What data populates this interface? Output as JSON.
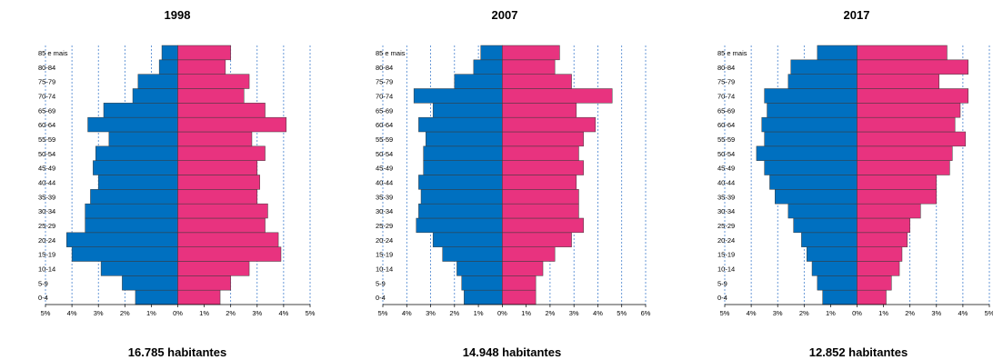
{
  "chart_data": [
    {
      "type": "bar",
      "title": "1998",
      "total_label": "16.785 habitantes",
      "categories": [
        "0-4",
        "5-9",
        "10-14",
        "15-19",
        "20-24",
        "25-29",
        "30-34",
        "35-39",
        "40-44",
        "45-49",
        "50-54",
        "55-59",
        "60-64",
        "65-69",
        "70-74",
        "75-79",
        "80-84",
        "85 e mais"
      ],
      "series": [
        {
          "color": "#0070c0",
          "values": [
            1.6,
            2.1,
            2.9,
            4.0,
            4.2,
            3.5,
            3.5,
            3.3,
            3.0,
            3.2,
            3.1,
            2.6,
            3.4,
            2.8,
            1.7,
            1.5,
            0.7,
            0.6
          ]
        },
        {
          "color": "#e8337f",
          "values": [
            1.6,
            2.0,
            2.7,
            3.9,
            3.8,
            3.3,
            3.4,
            3.0,
            3.1,
            3.0,
            3.3,
            2.8,
            4.1,
            3.3,
            2.5,
            2.7,
            1.8,
            2.0
          ]
        }
      ],
      "x_ticks": [
        "5%",
        "4%",
        "3%",
        "2%",
        "1%",
        "0%",
        "1%",
        "2%",
        "3%",
        "4%",
        "5%"
      ],
      "xlim": [
        -5,
        5
      ],
      "grid": true
    },
    {
      "type": "bar",
      "title": "2007",
      "total_label": "14.948 habitantes",
      "categories": [
        "0-4",
        "5-9",
        "10-14",
        "15-19",
        "20-24",
        "25-29",
        "30-34",
        "35-39",
        "40-44",
        "45-49",
        "50-54",
        "55-59",
        "60-64",
        "65-69",
        "70-74",
        "75-79",
        "80-84",
        "85 e mais"
      ],
      "series": [
        {
          "color": "#0070c0",
          "values": [
            1.6,
            1.7,
            1.9,
            2.5,
            2.9,
            3.6,
            3.5,
            3.4,
            3.5,
            3.3,
            3.3,
            3.2,
            3.5,
            2.9,
            3.7,
            2.0,
            1.2,
            0.9
          ]
        },
        {
          "color": "#e8337f",
          "values": [
            1.4,
            1.4,
            1.7,
            2.2,
            2.9,
            3.4,
            3.2,
            3.2,
            3.1,
            3.4,
            3.2,
            3.4,
            3.9,
            3.1,
            4.6,
            2.9,
            2.2,
            2.4
          ]
        }
      ],
      "x_ticks": [
        "5%",
        "4%",
        "3%",
        "2%",
        "1%",
        "0%",
        "1%",
        "2%",
        "3%",
        "4%",
        "5%",
        "6%"
      ],
      "xlim": [
        -5,
        6
      ],
      "grid": true
    },
    {
      "type": "bar",
      "title": "2017",
      "total_label": "12.852 habitantes",
      "categories": [
        "0-4",
        "5-9",
        "10-14",
        "15-19",
        "20-24",
        "25-29",
        "30-34",
        "35-39",
        "40-44",
        "45-49",
        "50-54",
        "55-59",
        "60-64",
        "65-69",
        "70-74",
        "75-79",
        "80-84",
        "85 e mais"
      ],
      "series": [
        {
          "color": "#0070c0",
          "values": [
            1.3,
            1.5,
            1.7,
            1.9,
            2.1,
            2.4,
            2.6,
            3.1,
            3.3,
            3.5,
            3.8,
            3.5,
            3.6,
            3.4,
            3.5,
            2.6,
            2.5,
            1.5
          ]
        },
        {
          "color": "#e8337f",
          "values": [
            1.1,
            1.3,
            1.6,
            1.7,
            1.9,
            2.0,
            2.4,
            3.0,
            3.0,
            3.5,
            3.6,
            4.1,
            3.7,
            3.9,
            4.2,
            3.1,
            4.2,
            3.4
          ]
        }
      ],
      "x_ticks": [
        "5%",
        "4%",
        "3%",
        "2%",
        "1%",
        "0%",
        "1%",
        "2%",
        "3%",
        "4%",
        "5%"
      ],
      "xlim": [
        -5,
        5
      ],
      "grid": true
    }
  ]
}
